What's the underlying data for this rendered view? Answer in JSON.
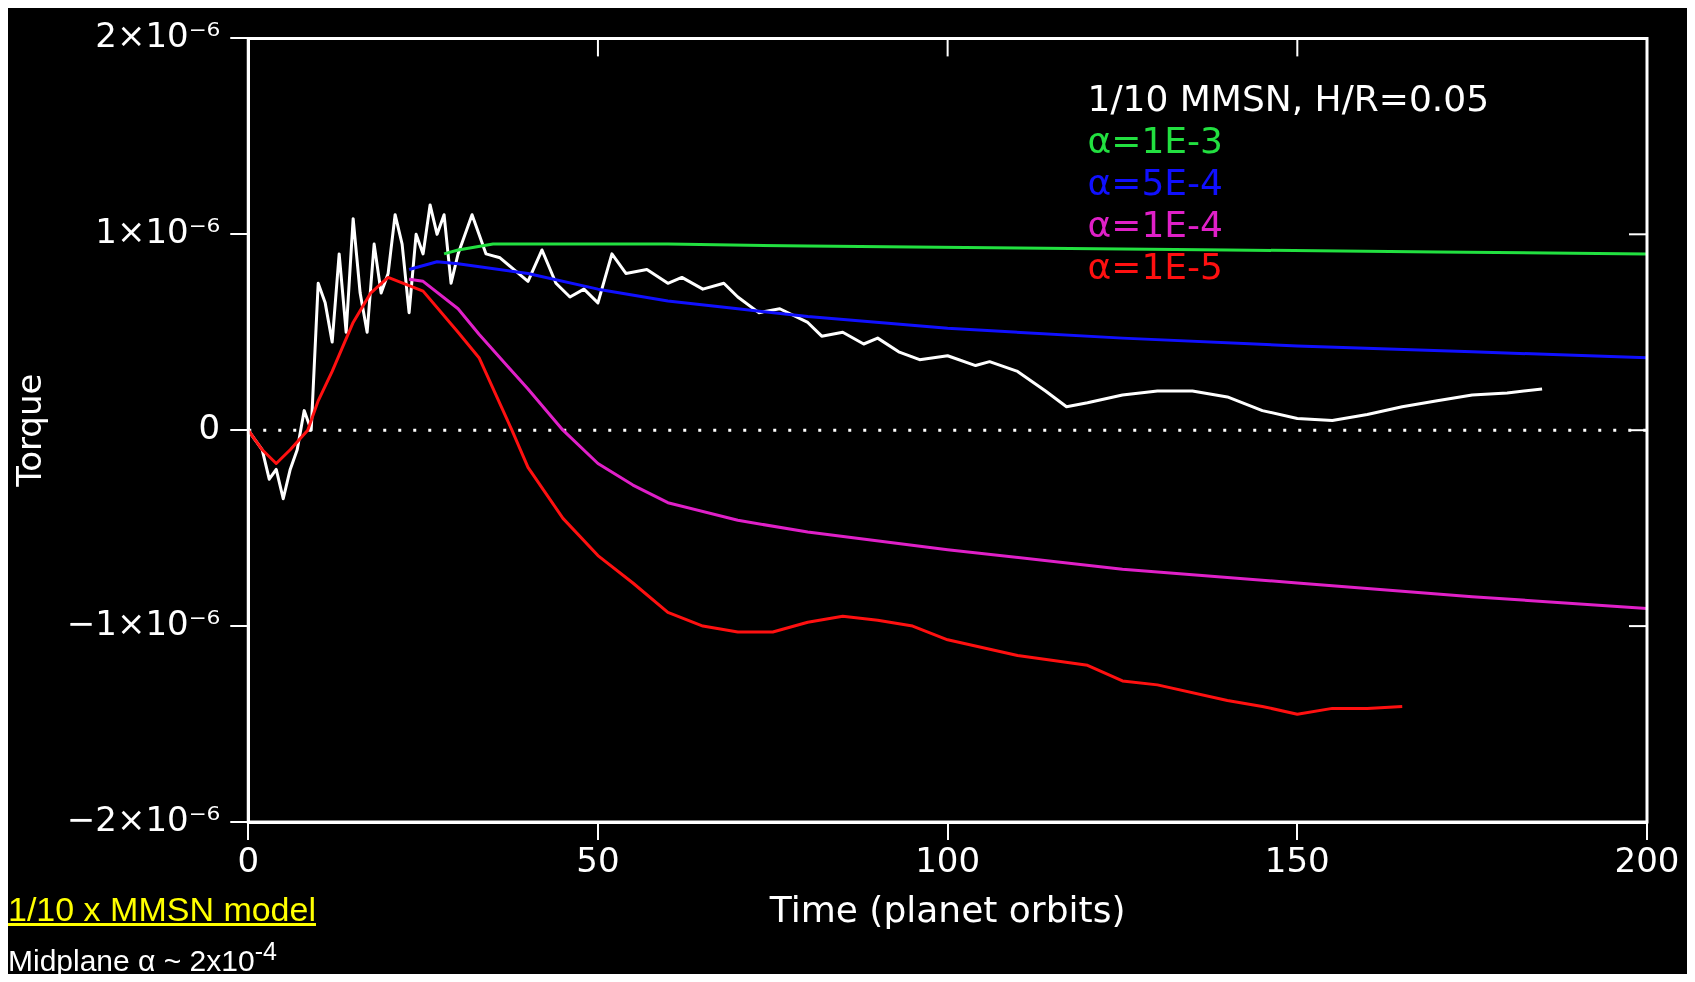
{
  "chart_data": {
    "type": "line",
    "xlabel": "Time (planet orbits)",
    "ylabel": "Torque",
    "legend_title": "1/10 MMSN, H/R=0.05",
    "legend": "top right",
    "grid": false,
    "line_style": "solid",
    "marker": "none",
    "xlim": [
      0,
      200
    ],
    "xticks": [
      0,
      50,
      100,
      150,
      200
    ],
    "ylim": [
      -2e-06,
      2e-06
    ],
    "yticks": [
      {
        "value": -2e-06,
        "label": "−2×10⁻⁶"
      },
      {
        "value": -1e-06,
        "label": "−1×10⁻⁶"
      },
      0,
      {
        "value": 1e-06,
        "label": "1×10⁻⁶"
      },
      {
        "value": 2e-06,
        "label": "2×10⁻⁶"
      }
    ],
    "ref_lines": [
      {
        "axis": "y",
        "value": 0,
        "color": "#ffffff",
        "line_style": "dotted"
      }
    ],
    "annotations": [
      "1/10 x MMSN model",
      "Midplane α ~ 2x10$^{-4}$"
    ],
    "series": [
      {
        "color": "#ffffff",
        "x": [
          0,
          2,
          3,
          4,
          5,
          6,
          7,
          8,
          9,
          10,
          11,
          12,
          13,
          14,
          15,
          16,
          17,
          18,
          19,
          20,
          21,
          22,
          23,
          24,
          25,
          26,
          27,
          28,
          29,
          30,
          32,
          34,
          36,
          38,
          40,
          42,
          44,
          46,
          48,
          50,
          52,
          54,
          57,
          60,
          62,
          65,
          68,
          70,
          73,
          76,
          80,
          82,
          85,
          88,
          90,
          93,
          96,
          100,
          104,
          106,
          110,
          114,
          117,
          120,
          125,
          130,
          135,
          140,
          145,
          150,
          155,
          160,
          165,
          170,
          175,
          180,
          185
        ],
        "values": [
          0,
          -1e-07,
          -2.5e-07,
          -2e-07,
          -3.5e-07,
          -2e-07,
          -1e-07,
          1e-07,
          0,
          7.5e-07,
          6.5e-07,
          4.5e-07,
          9e-07,
          5e-07,
          1.08e-06,
          7e-07,
          5e-07,
          9.5e-07,
          7e-07,
          8e-07,
          1.1e-06,
          9.5e-07,
          6e-07,
          1e-06,
          9e-07,
          1.15e-06,
          1e-06,
          1.1e-06,
          7.5e-07,
          9e-07,
          1.1e-06,
          9e-07,
          8.8e-07,
          8.2e-07,
          7.6e-07,
          9.2e-07,
          7.5e-07,
          6.8e-07,
          7.2e-07,
          6.5e-07,
          9e-07,
          8e-07,
          8.2e-07,
          7.5e-07,
          7.8e-07,
          7.2e-07,
          7.5e-07,
          6.8e-07,
          6e-07,
          6.2e-07,
          5.5e-07,
          4.8e-07,
          5e-07,
          4.4e-07,
          4.7e-07,
          4e-07,
          3.6e-07,
          3.8e-07,
          3.3e-07,
          3.5e-07,
          3e-07,
          2e-07,
          1.2e-07,
          1.4e-07,
          1.8e-07,
          2e-07,
          2e-07,
          1.7e-07,
          1e-07,
          6e-08,
          5e-08,
          8e-08,
          1.2e-07,
          1.5e-07,
          1.8e-07,
          1.9e-07,
          2.1e-07
        ]
      },
      {
        "name": "α=1E-3",
        "color": "#22e040",
        "x": [
          28,
          30,
          35,
          40,
          60,
          80,
          110,
          140,
          170,
          200
        ],
        "values": [
          9e-07,
          9.2e-07,
          9.5e-07,
          9.5e-07,
          9.5e-07,
          9.4e-07,
          9.3e-07,
          9.2e-07,
          9.1e-07,
          9e-07
        ]
      },
      {
        "name": "α=5E-4",
        "color": "#1010ff",
        "x": [
          23,
          27,
          30,
          40,
          50,
          60,
          70,
          80,
          100,
          125,
          150,
          175,
          200
        ],
        "values": [
          8.2e-07,
          8.6e-07,
          8.5e-07,
          8e-07,
          7.2e-07,
          6.6e-07,
          6.2e-07,
          5.8e-07,
          5.2e-07,
          4.7e-07,
          4.3e-07,
          4e-07,
          3.7e-07
        ]
      },
      {
        "name": "α=1E-4",
        "color": "#e020c8",
        "x": [
          23,
          25,
          30,
          33,
          40,
          45,
          50,
          55,
          60,
          70,
          80,
          100,
          125,
          150,
          175,
          200
        ],
        "values": [
          7.7e-07,
          7.6e-07,
          6.2e-07,
          4.9e-07,
          2.1e-07,
          0,
          -1.7e-07,
          -2.8e-07,
          -3.7e-07,
          -4.6e-07,
          -5.2e-07,
          -6.1e-07,
          -7.1e-07,
          -7.8e-07,
          -8.5e-07,
          -9.1e-07
        ]
      },
      {
        "name": "α=1E-5",
        "color": "#ff1010",
        "x": [
          0,
          2,
          4,
          6,
          8.5,
          10,
          12,
          15,
          17.5,
          20,
          25,
          30,
          33,
          37.7,
          40,
          45,
          50,
          55,
          60,
          65,
          70,
          75,
          80,
          85,
          90,
          95,
          100,
          110,
          120,
          125,
          130,
          140,
          145,
          150,
          155,
          160,
          165
        ],
        "values": [
          0,
          -1e-07,
          -1.7e-07,
          -1e-07,
          0,
          1.5e-07,
          3e-07,
          5.5e-07,
          7e-07,
          7.8e-07,
          7.1e-07,
          5e-07,
          3.7e-07,
          0,
          -1.9e-07,
          -4.5e-07,
          -6.4e-07,
          -7.8e-07,
          -9.3e-07,
          -1e-06,
          -1.03e-06,
          -1.03e-06,
          -9.8e-07,
          -9.5e-07,
          -9.7e-07,
          -1e-06,
          -1.07e-06,
          -1.15e-06,
          -1.2e-06,
          -1.28e-06,
          -1.3e-06,
          -1.38e-06,
          -1.41e-06,
          -1.45e-06,
          -1.42e-06,
          -1.42e-06,
          -1.41e-06
        ]
      }
    ]
  }
}
